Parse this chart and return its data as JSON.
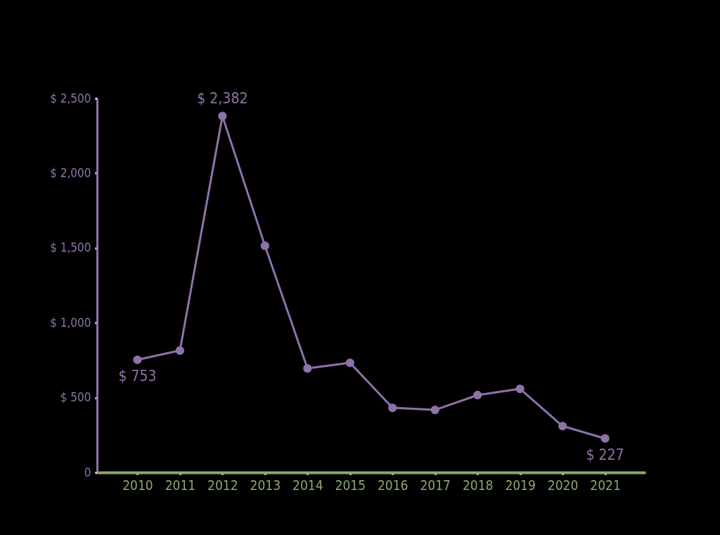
{
  "chart_data": {
    "type": "line",
    "categories": [
      "2010",
      "2011",
      "2012",
      "2013",
      "2014",
      "2015",
      "2016",
      "2017",
      "2018",
      "2019",
      "2020",
      "2021"
    ],
    "series": [
      {
        "color": "#8e72a8",
        "values": [
          753,
          815,
          2382,
          1515,
          695,
          733,
          432,
          418,
          517,
          559,
          310,
          227
        ],
        "value_labels": [
          "$ 753",
          null,
          "$ 2,382",
          null,
          null,
          null,
          null,
          null,
          null,
          null,
          null,
          "$ 227"
        ]
      }
    ],
    "ylim": [
      0,
      2500
    ],
    "yticks": [
      0,
      {
        "value": 500,
        "label": "$ 500"
      },
      {
        "value": 1000,
        "label": "$ 1,000"
      },
      {
        "value": 1500,
        "label": "$ 1,500"
      },
      {
        "value": 2000,
        "label": "$ 2,000"
      },
      {
        "value": 2500,
        "label": "$ 2,500"
      }
    ],
    "grid": false,
    "legend": false,
    "marker": "circle",
    "line_style": "solid"
  }
}
